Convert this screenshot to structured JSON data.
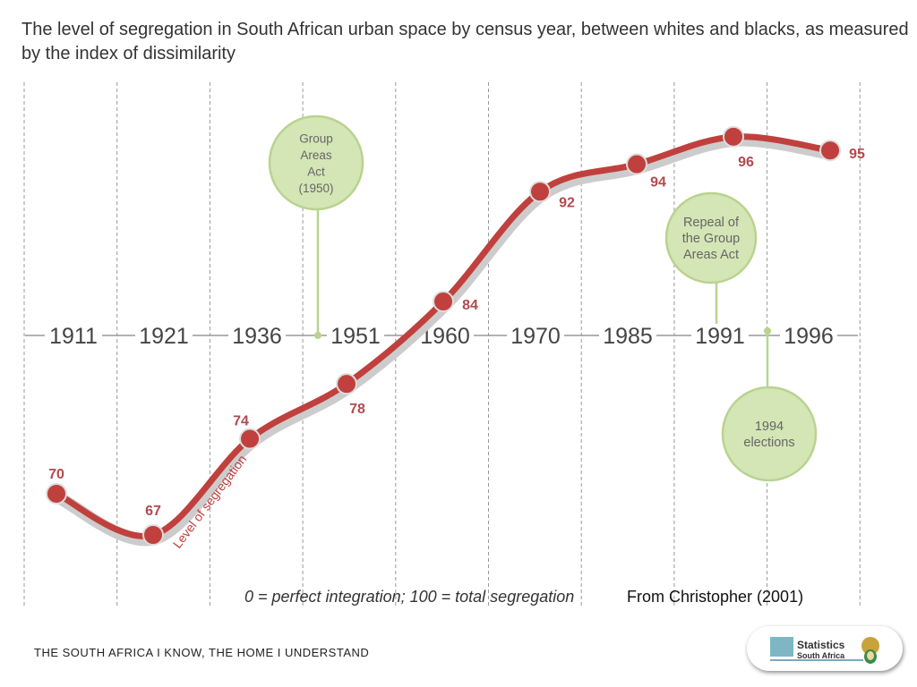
{
  "title": "The level of segregation in South African urban space by census year, between whites and blacks, as measured by the index of dissimilarity",
  "chart_data": {
    "type": "line",
    "title": "The level of segregation in South African urban space by census year, between whites and blacks, as measured by the index of dissimilarity",
    "categories": [
      "1911",
      "1921",
      "1936",
      "1951",
      "1960",
      "1970",
      "1985",
      "1991",
      "1996"
    ],
    "series": [
      {
        "name": "Level of segregation",
        "values": [
          70,
          67,
          74,
          78,
          84,
          92,
          94,
          96,
          95
        ]
      }
    ],
    "line_color": "#c0403e",
    "annotations": [
      {
        "text": [
          "Group",
          "Areas",
          "Act",
          "(1950)"
        ],
        "position": "between 1936 and 1951"
      },
      {
        "text": [
          "Repeal of",
          "the Group",
          "Areas Act"
        ],
        "position": "1991"
      },
      {
        "text": [
          "1994",
          "elections"
        ],
        "position": "between 1991 and 1996"
      }
    ],
    "annotation_color": "#d4e6b5",
    "grid": true
  },
  "scale_note": "0 = perfect integration; 100 = total segregation",
  "source": "From Christopher (2001)",
  "footer": "THE SOUTH AFRICA I KNOW, THE HOME I UNDERSTAND",
  "logo": {
    "line1": "Statistics",
    "line2": "South Africa"
  }
}
